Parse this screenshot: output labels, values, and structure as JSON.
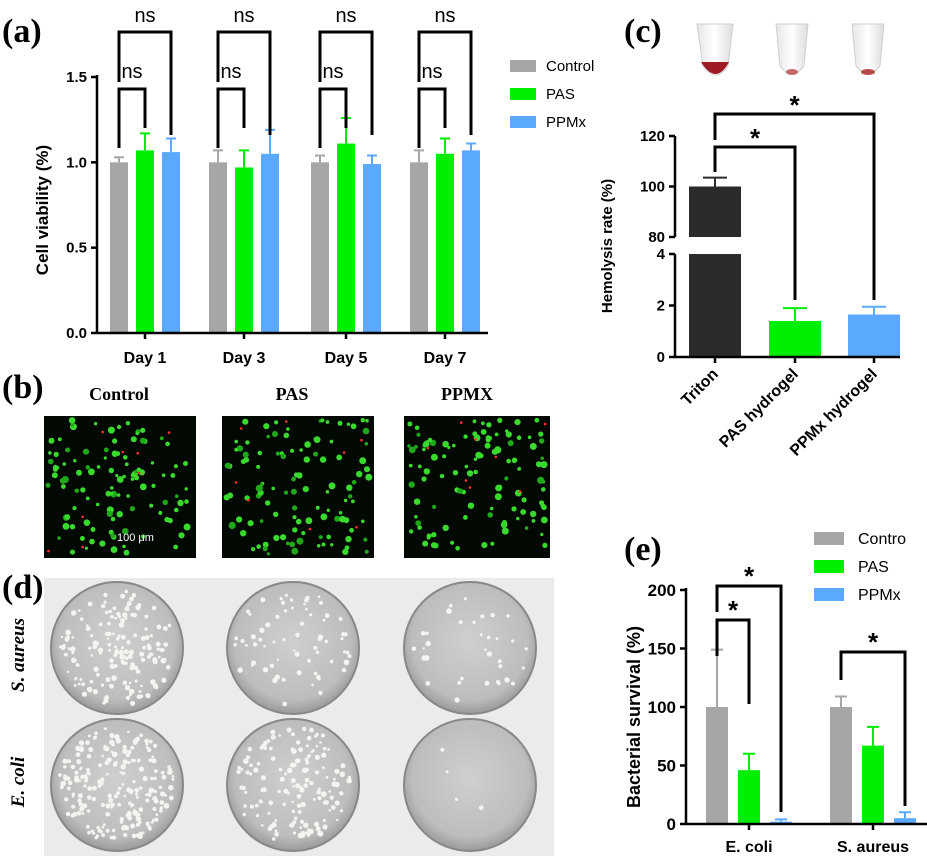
{
  "panel_labels": {
    "a": "(a)",
    "b": "(b)",
    "c": "(c)",
    "d": "(d)",
    "e": "(e)"
  },
  "colors": {
    "control": "#a6a6a6",
    "pas": "#00ee00",
    "ppmx": "#5aa9ff",
    "triton": "#2b2b2b"
  },
  "chart_data": [
    {
      "id": "a",
      "type": "bar",
      "ylabel": "Cell viability (%)",
      "ylim": [
        0,
        1.5
      ],
      "yticks": [
        "0.0",
        "0.5",
        "1.0",
        "1.5"
      ],
      "categories": [
        "Day 1",
        "Day 3",
        "Day 5",
        "Day 7"
      ],
      "legend_position": "right",
      "series": [
        {
          "name": "Control",
          "color": "#a6a6a6",
          "values": [
            1.0,
            1.0,
            1.0,
            1.0
          ],
          "errors": [
            0.03,
            0.07,
            0.04,
            0.07
          ]
        },
        {
          "name": "PAS",
          "color": "#00ee00",
          "values": [
            1.07,
            0.97,
            1.11,
            1.05
          ],
          "errors": [
            0.1,
            0.1,
            0.15,
            0.09
          ]
        },
        {
          "name": "PPMx",
          "color": "#5aa9ff",
          "values": [
            1.06,
            1.05,
            0.99,
            1.07
          ],
          "errors": [
            0.08,
            0.14,
            0.05,
            0.04
          ]
        }
      ],
      "annotations": [
        "ns",
        "ns",
        "ns",
        "ns",
        "ns",
        "ns",
        "ns",
        "ns"
      ]
    },
    {
      "id": "c",
      "type": "bar",
      "ylabel": "Hemolysis rate (%)",
      "broken_axis": {
        "lower": [
          0,
          4
        ],
        "upper": [
          80,
          120
        ]
      },
      "yticks_lower": [
        "0",
        "2",
        "4"
      ],
      "yticks_upper": [
        "80",
        "100",
        "120"
      ],
      "categories": [
        "Triton",
        "PAS hydrogel",
        "PPMx hydrogel"
      ],
      "values": [
        100,
        1.4,
        1.65
      ],
      "errors": [
        3.5,
        0.5,
        0.3
      ],
      "bar_colors": [
        "#2b2b2b",
        "#00ee00",
        "#5aa9ff"
      ],
      "annotations": [
        "*",
        "*"
      ]
    },
    {
      "id": "e",
      "type": "bar",
      "ylabel": "Bacterial survival (%)",
      "ylim": [
        0,
        200
      ],
      "yticks": [
        "0",
        "50",
        "100",
        "150",
        "200"
      ],
      "categories": [
        "E. coli",
        "S. aureus"
      ],
      "legend_position": "top-right",
      "series": [
        {
          "name": "Contro",
          "color": "#a6a6a6",
          "values": [
            100,
            100
          ],
          "errors": [
            49,
            9
          ]
        },
        {
          "name": "PAS",
          "color": "#00ee00",
          "values": [
            46,
            67
          ],
          "errors": [
            14,
            16
          ]
        },
        {
          "name": "PPMx",
          "color": "#5aa9ff",
          "values": [
            2,
            5
          ],
          "errors": [
            2,
            5
          ]
        }
      ],
      "annotations": [
        "*",
        "*",
        "*"
      ]
    }
  ],
  "panel_b": {
    "titles": [
      "Control",
      "PAS",
      "PPMX"
    ],
    "scale_bar": "100 μm"
  },
  "panel_d": {
    "row_labels": [
      "S. aureus",
      "E. coli"
    ]
  }
}
